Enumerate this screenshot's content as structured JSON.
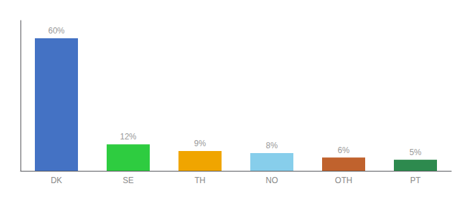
{
  "chart_data": {
    "type": "bar",
    "categories": [
      "DK",
      "SE",
      "TH",
      "NO",
      "OTH",
      "PT"
    ],
    "values": [
      60,
      12,
      9,
      8,
      6,
      5
    ],
    "value_labels": [
      "60%",
      "12%",
      "9%",
      "8%",
      "6%",
      "5%"
    ],
    "colors": [
      "#4472c4",
      "#2ecc40",
      "#f0a500",
      "#87ceeb",
      "#c0622d",
      "#2d8a4e"
    ],
    "data_labels": true,
    "ylim": [
      0,
      68
    ],
    "grid": false,
    "tick_labels": "x"
  }
}
